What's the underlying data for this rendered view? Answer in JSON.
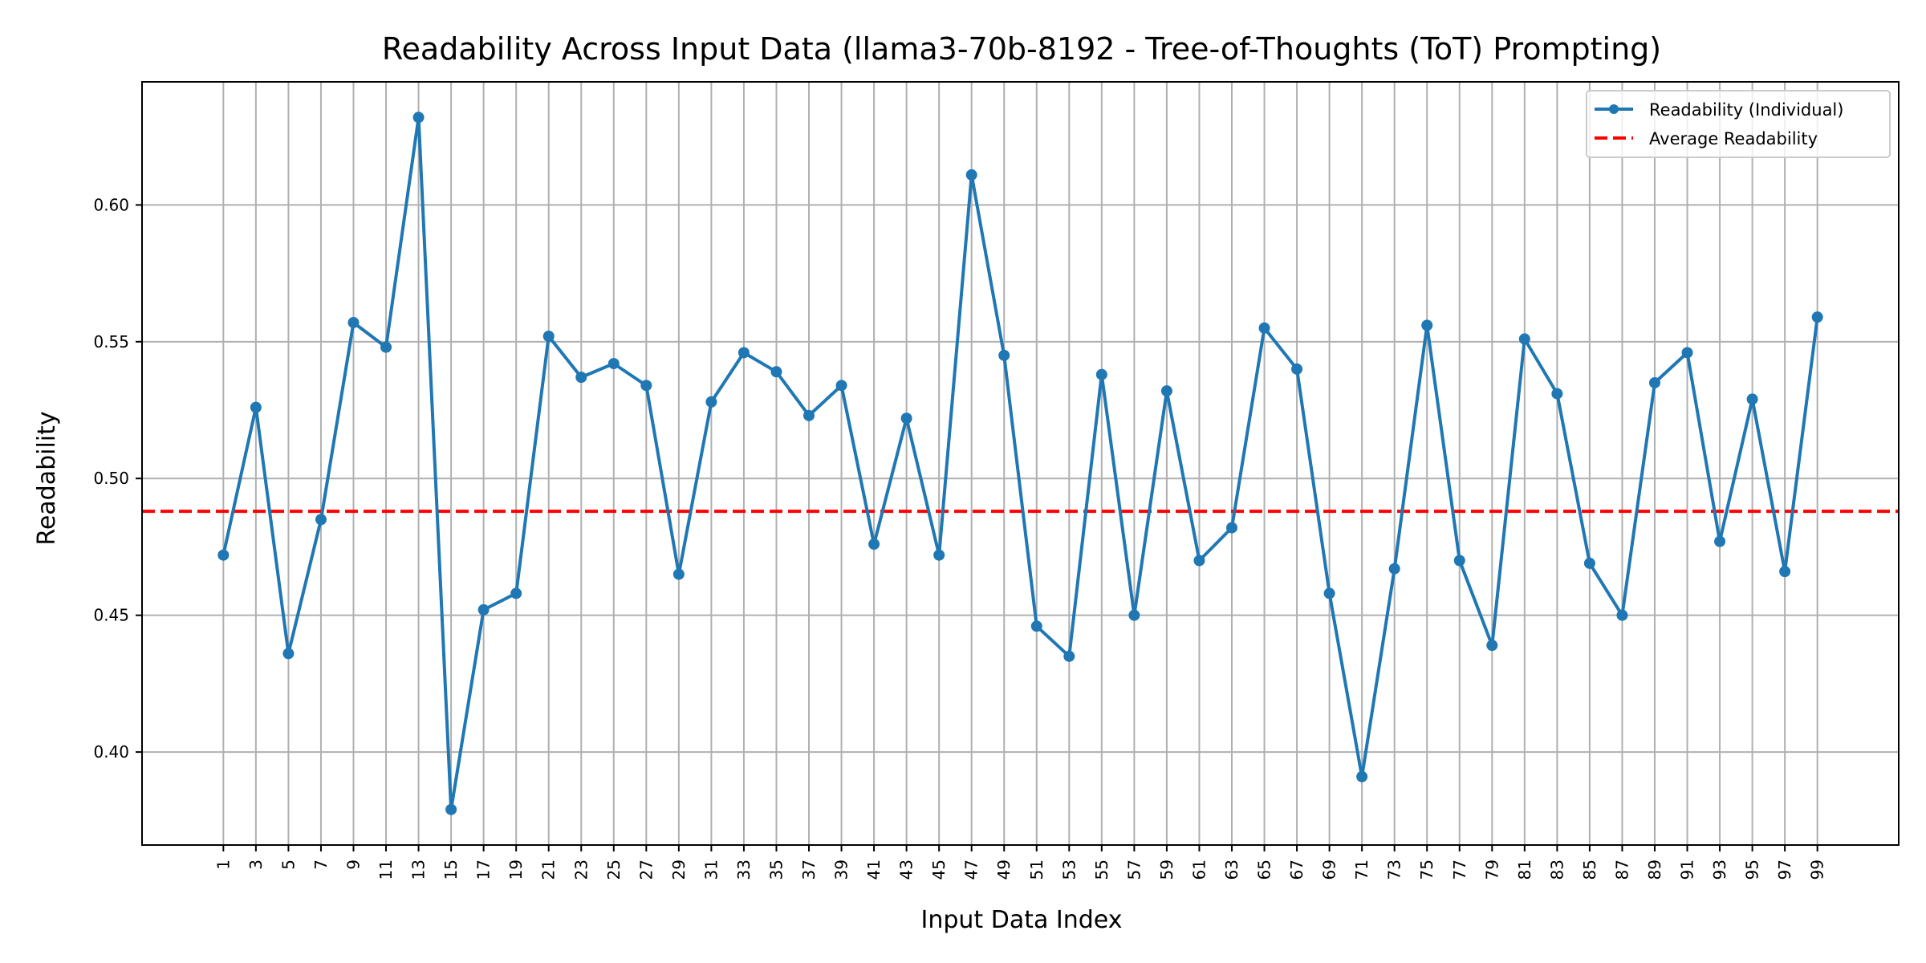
{
  "chart_data": {
    "type": "line",
    "title": "Readability Across Input Data (llama3-70b-8192 - Tree-of-Thoughts (ToT) Prompting)",
    "xlabel": "Input Data Index",
    "ylabel": "Readability",
    "x": [
      1,
      3,
      5,
      7,
      9,
      11,
      13,
      15,
      17,
      19,
      21,
      23,
      25,
      27,
      29,
      31,
      33,
      35,
      37,
      39,
      41,
      43,
      45,
      47,
      49,
      51,
      53,
      55,
      57,
      59,
      61,
      63,
      65,
      67,
      69,
      71,
      73,
      75,
      77,
      79,
      81,
      83,
      85,
      87,
      89,
      91,
      93,
      95,
      97,
      99
    ],
    "xlim": [
      -4,
      104
    ],
    "ylim": [
      0.366,
      0.645
    ],
    "yticks": [
      0.4,
      0.45,
      0.5,
      0.55,
      0.6
    ],
    "ytick_labels": [
      "0.40",
      "0.45",
      "0.50",
      "0.55",
      "0.60"
    ],
    "grid": true,
    "legend_position": "top-right",
    "series": [
      {
        "name": "Readability (Individual)",
        "style": "solid-line-with-dots",
        "color": "#1f77b4",
        "values": [
          0.472,
          0.526,
          0.436,
          0.485,
          0.557,
          0.548,
          0.632,
          0.379,
          0.452,
          0.458,
          0.552,
          0.537,
          0.542,
          0.534,
          0.465,
          0.528,
          0.546,
          0.539,
          0.523,
          0.534,
          0.476,
          0.522,
          0.472,
          0.611,
          0.545,
          0.446,
          0.435,
          0.538,
          0.45,
          0.532,
          0.47,
          0.482,
          0.555,
          0.54,
          0.458,
          0.391,
          0.467,
          0.556,
          0.47,
          0.439,
          0.551,
          0.531,
          0.469,
          0.45,
          0.535,
          0.546,
          0.477,
          0.529,
          0.466,
          0.559
        ]
      },
      {
        "name": "Average Readability",
        "style": "dashed",
        "color": "#ff0000",
        "value": 0.488
      }
    ]
  }
}
